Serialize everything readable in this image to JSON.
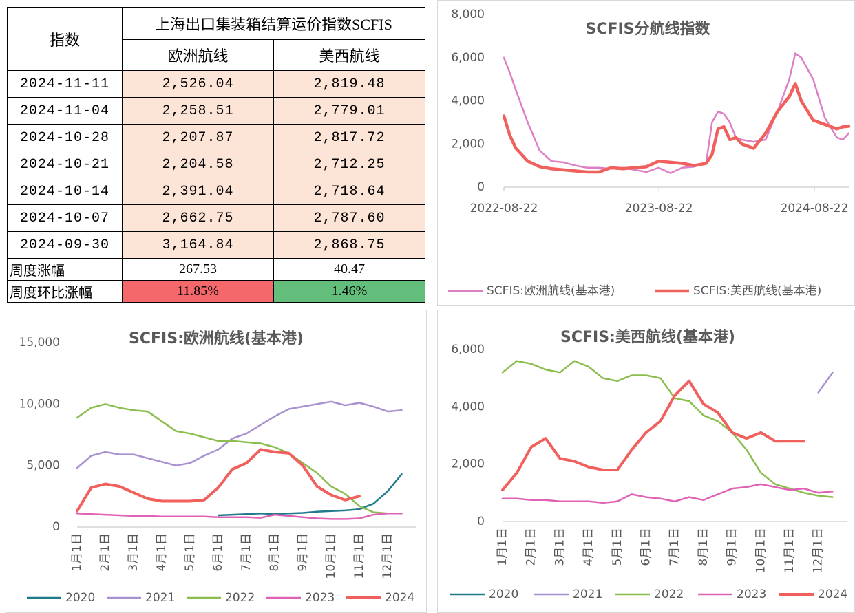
{
  "table": {
    "header": {
      "index": "指数",
      "title": "上海出口集装箱结算运价指数SCFIS",
      "columns": [
        "欧洲航线",
        "美西航线"
      ]
    },
    "rows": [
      [
        "2024-11-11",
        "2,526.04",
        "2,819.48"
      ],
      [
        "2024-11-04",
        "2,258.51",
        "2,779.01"
      ],
      [
        "2024-10-28",
        "2,207.87",
        "2,817.72"
      ],
      [
        "2024-10-21",
        "2,204.58",
        "2,712.25"
      ],
      [
        "2024-10-14",
        "2,391.04",
        "2,718.64"
      ],
      [
        "2024-10-07",
        "2,662.75",
        "2,787.60"
      ],
      [
        "2024-09-30",
        "3,164.84",
        "2,868.75"
      ]
    ],
    "summary": [
      [
        "周度涨幅",
        "267.53",
        "40.47"
      ],
      [
        "周度环比涨幅",
        "11.85%",
        "1.46%"
      ]
    ]
  },
  "chart_data": [
    {
      "type": "line",
      "title": "SCFIS分航线指数",
      "x": [
        "2022-08-22",
        "2022-09-05",
        "2022-09-19",
        "2022-10-17",
        "2022-11-14",
        "2022-12-12",
        "2023-01-09",
        "2023-02-06",
        "2023-03-06",
        "2023-04-03",
        "2023-05-01",
        "2023-05-29",
        "2023-06-26",
        "2023-07-24",
        "2023-08-21",
        "2023-09-18",
        "2023-10-16",
        "2023-11-13",
        "2023-12-11",
        "2023-12-25",
        "2024-01-08",
        "2024-01-22",
        "2024-02-05",
        "2024-02-19",
        "2024-03-04",
        "2024-04-01",
        "2024-04-29",
        "2024-05-27",
        "2024-06-24",
        "2024-07-08",
        "2024-07-22",
        "2024-08-19",
        "2024-09-16",
        "2024-10-14",
        "2024-10-28",
        "2024-11-11"
      ],
      "xlim": [
        "2022-08-22",
        "2024-11-11"
      ],
      "xticks": [
        "2022-08-22",
        "2023-08-22",
        "2024-08-22"
      ],
      "ylim": [
        0,
        8000
      ],
      "yticks": [
        0,
        {
          "value": 2000,
          "label": "2,000"
        },
        {
          "value": 4000,
          "label": "4,000"
        },
        {
          "value": 6000,
          "label": "6,000"
        },
        {
          "value": 8000,
          "label": "8,000"
        }
      ],
      "series": [
        {
          "name": "SCFIS:欧洲航线(基本港)",
          "color": "#dc7fc4",
          "width": 2.5,
          "values": [
            6000,
            5300,
            4500,
            3000,
            1700,
            1200,
            1150,
            1000,
            900,
            900,
            850,
            900,
            800,
            700,
            900,
            650,
            900,
            950,
            1100,
            3000,
            3500,
            3400,
            3000,
            2300,
            2200,
            2100,
            2200,
            3500,
            5000,
            6200,
            6000,
            5000,
            3200,
            2300,
            2200,
            2500
          ]
        },
        {
          "name": "SCFIS:美西航线(基本港)",
          "color": "#f0605d",
          "width": 4.5,
          "values": [
            3300,
            2400,
            1800,
            1200,
            950,
            850,
            800,
            750,
            700,
            700,
            900,
            850,
            900,
            950,
            1200,
            1150,
            1100,
            1000,
            1100,
            1500,
            2700,
            2800,
            2200,
            2300,
            2000,
            1800,
            2500,
            3500,
            4200,
            4800,
            4000,
            3100,
            2900,
            2700,
            2800,
            2820
          ]
        }
      ]
    },
    {
      "type": "line",
      "title": "SCFIS:欧洲航线(基本港)",
      "categories": [
        "1月1日",
        null,
        "2月1日",
        null,
        "3月1日",
        null,
        "4月1日",
        null,
        "5月1日",
        null,
        "6月1日",
        null,
        "7月1日",
        null,
        "8月1日",
        null,
        "9月1日",
        null,
        "10月1日",
        null,
        "11月1日",
        null,
        "12月1日",
        null
      ],
      "ylim": [
        0,
        15000
      ],
      "yticks": [
        0,
        {
          "value": 5000,
          "label": "5,000"
        },
        {
          "value": 10000,
          "label": "10,000"
        },
        {
          "value": 15000,
          "label": "15,000"
        }
      ],
      "series": [
        {
          "name": "2020",
          "color": "#1f7a8c",
          "width": 2.5,
          "values": [
            null,
            null,
            null,
            null,
            null,
            null,
            null,
            null,
            null,
            null,
            950,
            1000,
            1050,
            1100,
            1050,
            1100,
            1150,
            1250,
            1300,
            1350,
            1450,
            1900,
            2900,
            4300
          ]
        },
        {
          "name": "2021",
          "color": "#a990cf",
          "width": 2.5,
          "values": [
            4800,
            5800,
            6100,
            5900,
            5900,
            5600,
            5300,
            5000,
            5200,
            5800,
            6300,
            7200,
            7600,
            8300,
            9000,
            9600,
            9800,
            10000,
            10200,
            9900,
            10100,
            9800,
            9400,
            9500
          ]
        },
        {
          "name": "2022",
          "color": "#8bbd4e",
          "width": 2.5,
          "values": [
            8900,
            9700,
            10000,
            9700,
            9500,
            9400,
            8600,
            7800,
            7600,
            7300,
            7000,
            7000,
            6900,
            6800,
            6500,
            6000,
            5200,
            4400,
            3300,
            2700,
            1700,
            1200,
            1100,
            1100
          ]
        },
        {
          "name": "2023",
          "color": "#e062b5",
          "width": 2.5,
          "values": [
            1100,
            1050,
            1000,
            950,
            900,
            900,
            850,
            850,
            850,
            850,
            800,
            800,
            800,
            750,
            1000,
            900,
            800,
            700,
            650,
            650,
            700,
            1000,
            1100,
            1100
          ]
        },
        {
          "name": "2024",
          "color": "#f0605d",
          "width": 4,
          "values": [
            1300,
            3200,
            3500,
            3300,
            2800,
            2300,
            2100,
            2100,
            2100,
            2200,
            3200,
            4700,
            5200,
            6300,
            6100,
            6000,
            5000,
            3300,
            2600,
            2200,
            2500,
            null,
            null,
            null
          ]
        }
      ]
    },
    {
      "type": "line",
      "title": "SCFIS:美西航线(基本港)",
      "categories": [
        "1月1日",
        null,
        "2月1日",
        null,
        "3月1日",
        null,
        "4月1日",
        null,
        "5月1日",
        null,
        "6月1日",
        null,
        "7月1日",
        null,
        "8月1日",
        null,
        "9月1日",
        null,
        "10月1日",
        null,
        "11月1日",
        null,
        "12月1日",
        null
      ],
      "ylim": [
        0,
        6000
      ],
      "yticks": [
        0,
        {
          "value": 2000,
          "label": "2,000"
        },
        {
          "value": 4000,
          "label": "4,000"
        },
        {
          "value": 6000,
          "label": "6,000"
        }
      ],
      "series": [
        {
          "name": "2020",
          "color": "#1f7a8c",
          "width": 2.5,
          "values": [
            null,
            null,
            null,
            null,
            null,
            null,
            null,
            null,
            null,
            null,
            null,
            null,
            null,
            null,
            null,
            null,
            null,
            null,
            null,
            null,
            null,
            null,
            null,
            null
          ]
        },
        {
          "name": "2021",
          "color": "#a990cf",
          "width": 2.5,
          "values": [
            null,
            null,
            null,
            null,
            null,
            null,
            null,
            null,
            null,
            null,
            null,
            null,
            null,
            null,
            null,
            null,
            null,
            null,
            null,
            null,
            null,
            null,
            4500,
            5200
          ]
        },
        {
          "name": "2022",
          "color": "#8bbd4e",
          "width": 2.5,
          "values": [
            5200,
            5600,
            5500,
            5300,
            5200,
            5600,
            5400,
            5000,
            4900,
            5100,
            5100,
            5000,
            4300,
            4200,
            3700,
            3500,
            3100,
            2500,
            1700,
            1300,
            1150,
            1000,
            900,
            850
          ]
        },
        {
          "name": "2023",
          "color": "#e062b5",
          "width": 2.5,
          "values": [
            800,
            800,
            750,
            750,
            700,
            700,
            700,
            650,
            700,
            950,
            850,
            800,
            700,
            850,
            750,
            950,
            1150,
            1200,
            1300,
            1200,
            1100,
            1150,
            1000,
            1050
          ]
        },
        {
          "name": "2024",
          "color": "#f0605d",
          "width": 4,
          "values": [
            1100,
            1700,
            2600,
            2900,
            2200,
            2100,
            1900,
            1800,
            1800,
            2500,
            3100,
            3500,
            4400,
            4900,
            4100,
            3800,
            3100,
            2900,
            3100,
            2800,
            2800,
            2800,
            null,
            null
          ]
        }
      ]
    }
  ]
}
